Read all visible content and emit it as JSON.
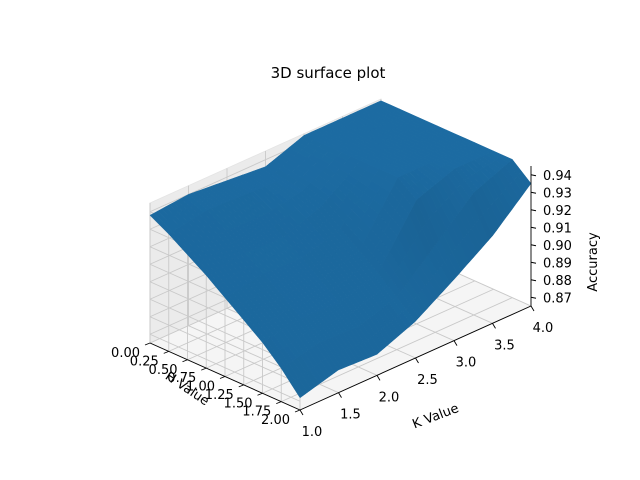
{
  "chart_data": {
    "type": "surface3d",
    "title": "3D surface plot",
    "xlabel": "K Value",
    "ylabel": "H Value",
    "zlabel": "Accuracy",
    "x_ticks": [
      "1.0",
      "1.5",
      "2.0",
      "2.5",
      "3.0",
      "3.5",
      "4.0"
    ],
    "y_ticks": [
      "0.00",
      "0.25",
      "0.50",
      "0.75",
      "1.00",
      "1.25",
      "1.50",
      "1.75",
      "2.00"
    ],
    "z_ticks": [
      "0.87",
      "0.88",
      "0.89",
      "0.90",
      "0.91",
      "0.92",
      "0.93",
      "0.94"
    ],
    "xlim": [
      1.0,
      4.0
    ],
    "ylim": [
      0.0,
      2.0
    ],
    "zlim": [
      0.865,
      0.945
    ],
    "grid": true,
    "surface_color": "#1f77b4",
    "k_values": [
      1.0,
      1.5,
      2.0,
      2.5,
      3.0,
      3.5,
      4.0
    ],
    "h_values": [
      0.0,
      0.25,
      0.5,
      0.75,
      1.0,
      1.25,
      1.5,
      1.75,
      2.0
    ],
    "accuracy": [
      [
        0.938,
        0.94,
        0.938,
        0.936,
        0.944,
        0.944,
        0.944
      ],
      [
        0.932,
        0.936,
        0.935,
        0.934,
        0.944,
        0.944,
        0.944
      ],
      [
        0.925,
        0.929,
        0.928,
        0.932,
        0.944,
        0.944,
        0.944
      ],
      [
        0.918,
        0.921,
        0.92,
        0.928,
        0.944,
        0.944,
        0.944
      ],
      [
        0.91,
        0.914,
        0.913,
        0.92,
        0.944,
        0.944,
        0.944
      ],
      [
        0.902,
        0.906,
        0.905,
        0.912,
        0.944,
        0.944,
        0.944
      ],
      [
        0.894,
        0.898,
        0.897,
        0.904,
        0.936,
        0.944,
        0.944
      ],
      [
        0.884,
        0.889,
        0.888,
        0.895,
        0.915,
        0.935,
        0.944
      ],
      [
        0.872,
        0.878,
        0.877,
        0.886,
        0.9,
        0.915,
        0.935
      ]
    ]
  }
}
